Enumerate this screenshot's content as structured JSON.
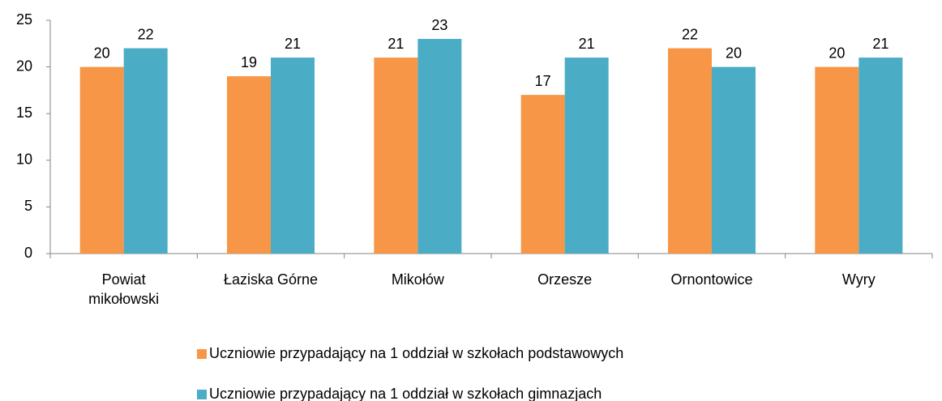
{
  "chart_data": {
    "type": "bar",
    "categories": [
      "Powiat mikołowski",
      "Łaziska Górne",
      "Mikołów",
      "Orzesze",
      "Ornontowice",
      "Wyry"
    ],
    "series": [
      {
        "name": "Uczniowie przypadający na 1 oddział w szkołach podstawowych",
        "color": "#f79646",
        "values": [
          20,
          19,
          21,
          17,
          22,
          20
        ]
      },
      {
        "name": "Uczniowie przypadający na 1 oddział w szkołach gimnazjach",
        "color": "#4bacc6",
        "values": [
          22,
          21,
          23,
          21,
          20,
          21
        ]
      }
    ],
    "ylim": [
      0,
      25
    ],
    "yticks": [
      0,
      5,
      10,
      15,
      20,
      25
    ],
    "grid": false,
    "legend": "bottom"
  }
}
